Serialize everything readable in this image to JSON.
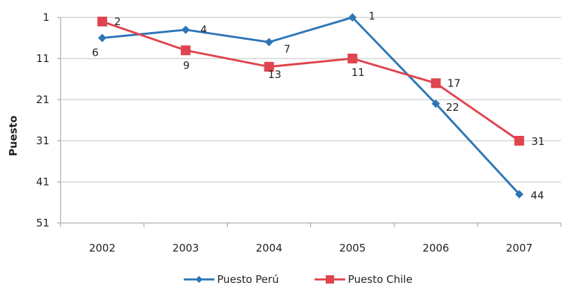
{
  "chart_data": {
    "type": "line",
    "ylabel": "Puesto",
    "xlabel": "",
    "title": "",
    "categories": [
      "2002",
      "2003",
      "2004",
      "2005",
      "2006",
      "2007"
    ],
    "y_ticks": [
      "1",
      "11",
      "21",
      "31",
      "41",
      "51"
    ],
    "ylim": [
      1,
      51
    ],
    "y_inverted": true,
    "grid": true,
    "legend_position": "bottom",
    "series": [
      {
        "name": "Puesto Perú",
        "values": [
          6,
          4,
          7,
          1,
          22,
          44
        ],
        "labels": [
          "6",
          "4",
          "7",
          "1",
          "22",
          "44"
        ],
        "color": "#2e75b6",
        "marker": "diamond"
      },
      {
        "name": "Puesto Chile",
        "values": [
          2,
          9,
          13,
          11,
          17,
          31
        ],
        "labels": [
          "2",
          "9",
          "13",
          "11",
          "17",
          "31"
        ],
        "color": "#e0444e",
        "marker": "square"
      }
    ]
  }
}
